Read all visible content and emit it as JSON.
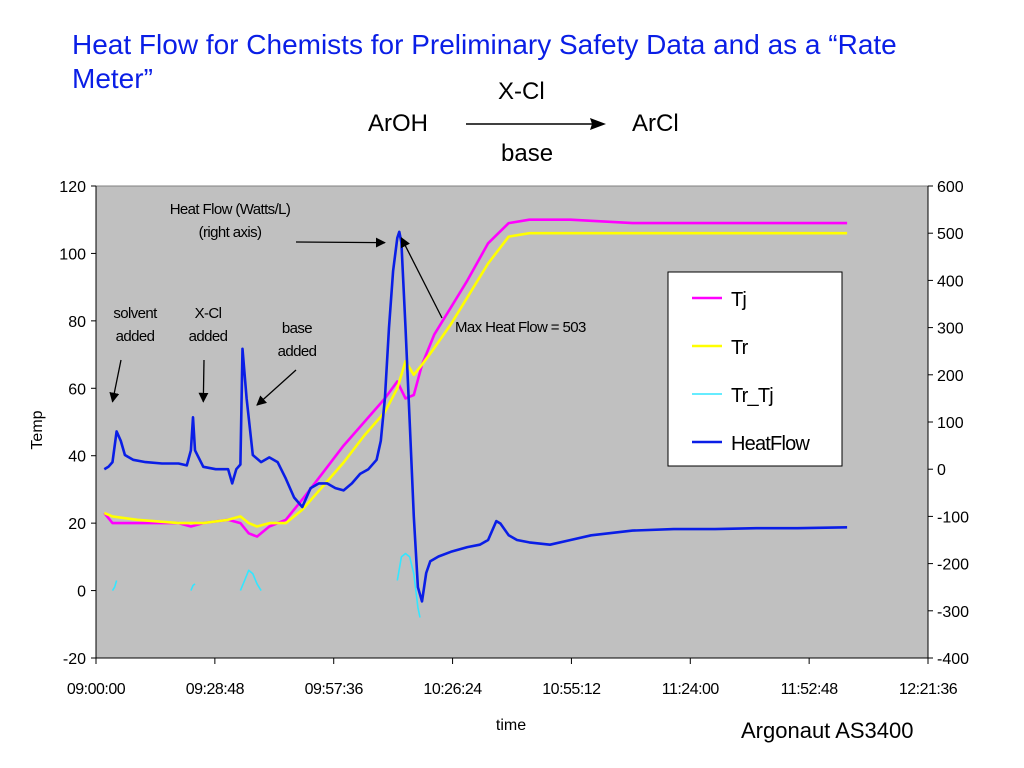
{
  "slide": {
    "title": "Heat Flow for Chemists for Preliminary Safety Data and as a “Rate Meter”",
    "reaction": {
      "reactant": "ArOH",
      "product": "ArCl",
      "reagent": "X-Cl",
      "condition": "base"
    },
    "footer": "Argonaut AS3400"
  },
  "colors": {
    "title": "#0a1ee6",
    "plot_bg": "#c0c0c0",
    "Tj": "#ff00ff",
    "Tr": "#ffff00",
    "Tr_Tj": "#33e6ff",
    "HeatFlow": "#0a1ee6"
  },
  "chart_data": {
    "type": "line",
    "xlabel": "time",
    "ylabel": "Temp",
    "y2label": "",
    "xlim": [
      "09:00:00",
      "12:21:36"
    ],
    "ylim": [
      -20,
      120
    ],
    "y2lim": [
      -400,
      600
    ],
    "xticks": [
      "09:00:00",
      "09:28:48",
      "09:57:36",
      "10:26:24",
      "10:55:12",
      "11:24:00",
      "11:52:48",
      "12:21:36"
    ],
    "yticks": [
      -20,
      0,
      20,
      40,
      60,
      80,
      100,
      120
    ],
    "y2ticks": [
      -400,
      -300,
      -200,
      -100,
      0,
      100,
      200,
      300,
      400,
      500,
      600
    ],
    "grid": false,
    "legend_position": "right",
    "series": [
      {
        "name": "Tj",
        "axis": "left",
        "color": "#ff00ff",
        "points": [
          [
            "09:02:00",
            23
          ],
          [
            "09:04:00",
            20
          ],
          [
            "09:10:00",
            20
          ],
          [
            "09:20:00",
            20
          ],
          [
            "09:23:00",
            19
          ],
          [
            "09:26:00",
            20
          ],
          [
            "09:32:00",
            21
          ],
          [
            "09:35:00",
            20
          ],
          [
            "09:37:00",
            17
          ],
          [
            "09:39:00",
            16
          ],
          [
            "09:42:00",
            19
          ],
          [
            "09:46:00",
            21
          ],
          [
            "09:50:00",
            27
          ],
          [
            "09:55:00",
            35
          ],
          [
            "10:00:00",
            43
          ],
          [
            "10:05:00",
            50
          ],
          [
            "10:10:00",
            57
          ],
          [
            "10:13:00",
            62
          ],
          [
            "10:15:00",
            57
          ],
          [
            "10:17:00",
            58
          ],
          [
            "10:19:00",
            67
          ],
          [
            "10:22:00",
            76
          ],
          [
            "10:26:00",
            84
          ],
          [
            "10:30:00",
            92
          ],
          [
            "10:35:00",
            103
          ],
          [
            "10:40:00",
            109
          ],
          [
            "10:45:00",
            110
          ],
          [
            "10:55:00",
            110
          ],
          [
            "11:10:00",
            109
          ],
          [
            "11:30:00",
            109
          ],
          [
            "11:50:00",
            109
          ],
          [
            "12:02:00",
            109
          ]
        ]
      },
      {
        "name": "Tr",
        "axis": "left",
        "color": "#ffff00",
        "points": [
          [
            "09:02:00",
            23
          ],
          [
            "09:04:00",
            22
          ],
          [
            "09:10:00",
            21
          ],
          [
            "09:20:00",
            20
          ],
          [
            "09:23:00",
            20
          ],
          [
            "09:26:00",
            20
          ],
          [
            "09:32:00",
            21
          ],
          [
            "09:35:00",
            22
          ],
          [
            "09:37:00",
            20
          ],
          [
            "09:39:00",
            19
          ],
          [
            "09:42:00",
            20
          ],
          [
            "09:46:00",
            20
          ],
          [
            "09:50:00",
            24
          ],
          [
            "09:55:00",
            31
          ],
          [
            "10:00:00",
            38
          ],
          [
            "10:05:00",
            46
          ],
          [
            "10:10:00",
            53
          ],
          [
            "10:13:00",
            60
          ],
          [
            "10:15:00",
            68
          ],
          [
            "10:17:00",
            64
          ],
          [
            "10:19:00",
            67
          ],
          [
            "10:22:00",
            72
          ],
          [
            "10:26:00",
            79
          ],
          [
            "10:30:00",
            87
          ],
          [
            "10:35:00",
            97
          ],
          [
            "10:40:00",
            105
          ],
          [
            "10:45:00",
            106
          ],
          [
            "10:55:00",
            106
          ],
          [
            "11:10:00",
            106
          ],
          [
            "11:30:00",
            106
          ],
          [
            "11:50:00",
            106
          ],
          [
            "12:02:00",
            106
          ]
        ]
      },
      {
        "name": "Tr_Tj",
        "axis": "left",
        "color": "#33e6ff",
        "segments": [
          [
            [
              "09:04:00",
              0
            ],
            [
              "09:04:30",
              1
            ],
            [
              "09:05:00",
              3
            ]
          ],
          [
            [
              "09:23:00",
              0
            ],
            [
              "09:23:30",
              1.5
            ],
            [
              "09:24:00",
              2
            ]
          ],
          [
            [
              "09:35:00",
              0
            ],
            [
              "09:36:00",
              3
            ],
            [
              "09:37:00",
              6
            ],
            [
              "09:38:00",
              5
            ],
            [
              "09:39:00",
              2
            ],
            [
              "09:40:00",
              0
            ]
          ],
          [
            [
              "10:13:00",
              3
            ],
            [
              "10:14:00",
              10
            ],
            [
              "10:15:00",
              11
            ],
            [
              "10:16:00",
              10
            ],
            [
              "10:17:00",
              5
            ],
            [
              "10:18:00",
              -5
            ],
            [
              "10:18:30",
              -8
            ]
          ]
        ]
      },
      {
        "name": "HeatFlow",
        "axis": "right",
        "color": "#0a1ee6",
        "points": [
          [
            "09:02:00",
            0
          ],
          [
            "09:03:00",
            5
          ],
          [
            "09:04:00",
            15
          ],
          [
            "09:05:00",
            80
          ],
          [
            "09:06:00",
            60
          ],
          [
            "09:07:00",
            30
          ],
          [
            "09:09:00",
            20
          ],
          [
            "09:12:00",
            15
          ],
          [
            "09:16:00",
            12
          ],
          [
            "09:20:00",
            12
          ],
          [
            "09:22:00",
            8
          ],
          [
            "09:23:00",
            40
          ],
          [
            "09:23:30",
            110
          ],
          [
            "09:24:00",
            40
          ],
          [
            "09:26:00",
            5
          ],
          [
            "09:29:00",
            0
          ],
          [
            "09:32:00",
            0
          ],
          [
            "09:33:00",
            -30
          ],
          [
            "09:34:00",
            0
          ],
          [
            "09:35:00",
            10
          ],
          [
            "09:35:30",
            255
          ],
          [
            "09:36:30",
            150
          ],
          [
            "09:38:00",
            30
          ],
          [
            "09:40:00",
            15
          ],
          [
            "09:42:00",
            25
          ],
          [
            "09:44:00",
            15
          ],
          [
            "09:46:00",
            -20
          ],
          [
            "09:48:00",
            -60
          ],
          [
            "09:50:00",
            -80
          ],
          [
            "09:52:00",
            -40
          ],
          [
            "09:54:00",
            -30
          ],
          [
            "09:56:00",
            -30
          ],
          [
            "09:58:00",
            -40
          ],
          [
            "10:00:00",
            -45
          ],
          [
            "10:02:00",
            -30
          ],
          [
            "10:04:00",
            -10
          ],
          [
            "10:06:00",
            0
          ],
          [
            "10:08:00",
            20
          ],
          [
            "10:09:00",
            60
          ],
          [
            "10:10:00",
            150
          ],
          [
            "10:11:00",
            300
          ],
          [
            "10:12:00",
            420
          ],
          [
            "10:13:00",
            490
          ],
          [
            "10:13:30",
            503
          ],
          [
            "10:14:00",
            480
          ],
          [
            "10:15:00",
            300
          ],
          [
            "10:16:00",
            100
          ],
          [
            "10:17:00",
            -100
          ],
          [
            "10:18:00",
            -250
          ],
          [
            "10:19:00",
            -280
          ],
          [
            "10:20:00",
            -220
          ],
          [
            "10:21:00",
            -195
          ],
          [
            "10:23:00",
            -185
          ],
          [
            "10:26:00",
            -175
          ],
          [
            "10:30:00",
            -165
          ],
          [
            "10:33:00",
            -160
          ],
          [
            "10:35:00",
            -150
          ],
          [
            "10:37:00",
            -110
          ],
          [
            "10:38:00",
            -115
          ],
          [
            "10:40:00",
            -140
          ],
          [
            "10:42:00",
            -150
          ],
          [
            "10:45:00",
            -155
          ],
          [
            "10:50:00",
            -160
          ],
          [
            "10:55:00",
            -150
          ],
          [
            "11:00:00",
            -140
          ],
          [
            "11:10:00",
            -130
          ],
          [
            "11:20:00",
            -127
          ],
          [
            "11:30:00",
            -127
          ],
          [
            "11:40:00",
            -125
          ],
          [
            "11:50:00",
            -125
          ],
          [
            "12:02:00",
            -123
          ]
        ]
      }
    ],
    "annotations": [
      {
        "lines": [
          "Heat Flow (Watts/L)",
          "(right axis)"
        ],
        "arrow_to": [
          "10:10:00",
          480
        ],
        "axis": "right"
      },
      {
        "lines": [
          "solvent",
          "added"
        ],
        "arrow_to": [
          "09:04:00",
          56
        ],
        "axis": "left"
      },
      {
        "lines": [
          "X-Cl",
          "added"
        ],
        "arrow_to": [
          "09:26:00",
          56
        ],
        "axis": "left"
      },
      {
        "lines": [
          "base",
          "added"
        ],
        "arrow_to": [
          "09:39:00",
          55
        ],
        "axis": "left"
      },
      {
        "lines": [
          "Max Heat Flow = 503"
        ],
        "arrow_to": [
          "10:14:00",
          490
        ],
        "axis": "right"
      }
    ]
  }
}
